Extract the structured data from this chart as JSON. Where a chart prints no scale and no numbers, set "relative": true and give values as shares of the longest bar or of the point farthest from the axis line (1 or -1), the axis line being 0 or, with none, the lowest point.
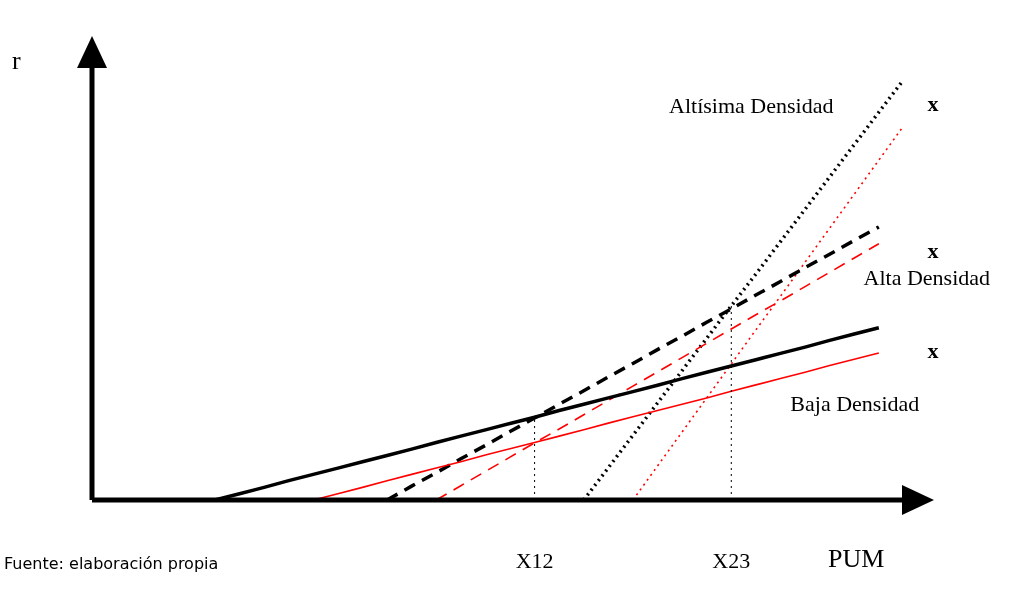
{
  "chart_data": {
    "type": "line",
    "relative": true,
    "xlabel": "PUM",
    "ylabel": "r",
    "tick_labels": "x",
    "legend": false,
    "marker": "none",
    "categories": [
      null,
      null,
      null,
      null,
      null,
      null,
      null,
      null,
      null,
      null,
      null,
      null,
      null,
      null,
      null,
      null,
      null,
      null,
      "X12",
      null,
      null,
      null,
      null,
      null,
      null,
      null,
      "X23",
      null,
      null,
      null,
      null,
      null,
      null,
      null,
      null
    ],
    "series": [
      {
        "name": "Baja Densidad",
        "color": "#000000",
        "line_style": "solid",
        "values": [
          null,
          null,
          null,
          null,
          null,
          0,
          0.015,
          0.03,
          0.046,
          0.061,
          0.076,
          0.091,
          0.106,
          0.121,
          0.137,
          0.152,
          0.167,
          0.182,
          0.197,
          0.213,
          0.228,
          0.243,
          0.258,
          0.273,
          0.289,
          0.304,
          0.319,
          0.334,
          0.349,
          0.364,
          0.38,
          0.395,
          0.41,
          null,
          null
        ]
      },
      {
        "color": "#ff0000",
        "line_style": "solid",
        "values": [
          null,
          null,
          null,
          null,
          null,
          null,
          null,
          null,
          null,
          0,
          0.015,
          0.03,
          0.046,
          0.061,
          0.076,
          0.091,
          0.107,
          0.122,
          0.137,
          0.152,
          0.167,
          0.183,
          0.198,
          0.213,
          0.228,
          0.243,
          0.259,
          0.274,
          0.289,
          0.304,
          0.32,
          0.335,
          0.35,
          null,
          null
        ]
      },
      {
        "name": "Alta Densidad",
        "color": "#000000",
        "line_style": "dashed",
        "values": [
          null,
          null,
          null,
          null,
          null,
          null,
          null,
          null,
          null,
          null,
          null,
          null,
          0,
          0.033,
          0.065,
          0.098,
          0.13,
          0.163,
          0.195,
          0.228,
          0.26,
          0.293,
          0.325,
          0.358,
          0.39,
          0.423,
          0.455,
          0.488,
          0.52,
          0.553,
          0.585,
          0.618,
          0.65,
          null,
          null
        ]
      },
      {
        "color": "#ff0000",
        "line_style": "dashed",
        "values": [
          null,
          null,
          null,
          null,
          null,
          null,
          null,
          null,
          null,
          null,
          null,
          null,
          null,
          null,
          0,
          0.034,
          0.068,
          0.102,
          0.136,
          0.169,
          0.203,
          0.237,
          0.271,
          0.305,
          0.339,
          0.373,
          0.407,
          0.441,
          0.474,
          0.508,
          0.542,
          0.576,
          0.61,
          null,
          null
        ]
      },
      {
        "name": "Altísima Densidad",
        "color": "#000000",
        "line_style": "dotted",
        "values": [
          null,
          null,
          null,
          null,
          null,
          null,
          null,
          null,
          null,
          null,
          null,
          null,
          null,
          null,
          null,
          null,
          null,
          null,
          null,
          null,
          0,
          0.077,
          0.154,
          0.231,
          0.308,
          0.385,
          0.462,
          0.538,
          0.615,
          0.692,
          0.769,
          0.846,
          0.923,
          1.0,
          null
        ]
      },
      {
        "color": "#ff0000",
        "line_style": "dotted",
        "values": [
          null,
          null,
          null,
          null,
          null,
          null,
          null,
          null,
          null,
          null,
          null,
          null,
          null,
          null,
          null,
          null,
          null,
          null,
          null,
          null,
          null,
          null,
          0,
          0.081,
          0.162,
          0.243,
          0.324,
          0.405,
          0.485,
          0.566,
          0.647,
          0.728,
          0.809,
          0.89,
          null
        ]
      }
    ],
    "ref_lines": [
      {
        "axis": "x",
        "value": "X12",
        "line_style": "dotted"
      },
      {
        "axis": "x",
        "value": "X23",
        "line_style": "dotted"
      }
    ],
    "annotations": [
      "x",
      "x",
      "x",
      "Fuente: elaboración propia"
    ]
  }
}
